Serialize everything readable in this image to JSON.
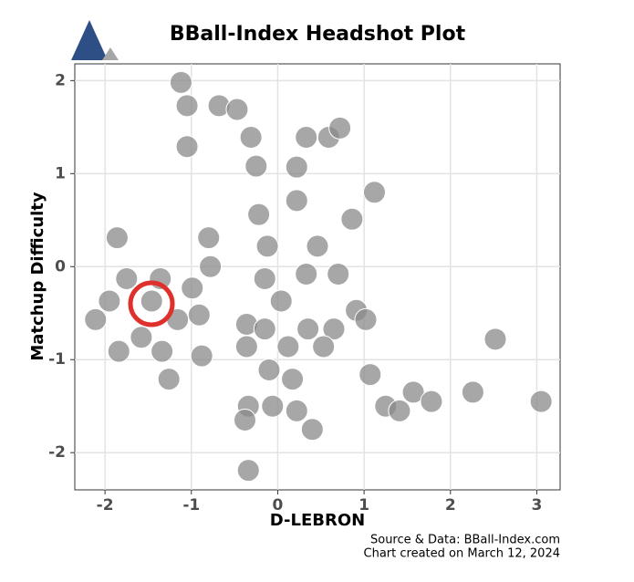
{
  "chart_data": {
    "type": "scatter",
    "title": "BBall-Index Headshot Plot",
    "x_label": "D-LEBRON",
    "y_label": "Matchup Difficulty",
    "source": "Source & Data: BBall-Index.com",
    "caption": "Chart created on March 12, 2024",
    "color": "#8a8a8a",
    "grid": true,
    "xlim": [
      -2.35,
      3.27
    ],
    "ylim": [
      -2.4,
      2.18
    ],
    "xticks": [
      -2,
      -1,
      0,
      1,
      2,
      3
    ],
    "yticks": [
      -2,
      -1,
      0,
      1,
      2
    ],
    "x": [
      -1.12,
      -1.05,
      -0.68,
      -0.47,
      -1.05,
      -0.31,
      0.33,
      0.59,
      0.72,
      -0.25,
      0.22,
      1.12,
      0.22,
      0.86,
      -0.22,
      -1.86,
      -0.8,
      -0.12,
      0.46,
      -0.78,
      -1.75,
      -1.36,
      -0.99,
      -0.15,
      0.33,
      0.7,
      -1.95,
      -2.11,
      -1.46,
      -0.91,
      0.04,
      0.91,
      1.02,
      -0.36,
      -0.15,
      0.35,
      0.65,
      -1.58,
      -1.16,
      -1.84,
      -1.34,
      -0.88,
      -0.36,
      0.12,
      0.53,
      2.52,
      -1.26,
      -0.1,
      0.17,
      1.07,
      -0.34,
      -0.06,
      0.22,
      1.25,
      1.41,
      1.57,
      1.78,
      2.26,
      3.05,
      -0.38,
      0.4,
      -0.34
    ],
    "values": [
      1.98,
      1.73,
      1.73,
      1.69,
      1.29,
      1.39,
      1.39,
      1.39,
      1.49,
      1.08,
      1.07,
      0.8,
      0.71,
      0.51,
      0.56,
      0.31,
      0.31,
      0.22,
      0.22,
      0,
      -0.13,
      -0.13,
      -0.23,
      -0.13,
      -0.08,
      -0.08,
      -0.37,
      -0.57,
      -0.37,
      -0.52,
      -0.37,
      -0.47,
      -0.57,
      -0.62,
      -0.67,
      -0.67,
      -0.67,
      -0.76,
      -0.57,
      -0.91,
      -0.91,
      -0.96,
      -0.86,
      -0.86,
      -0.86,
      -0.78,
      -1.21,
      -1.11,
      -1.21,
      -1.16,
      -1.5,
      -1.5,
      -1.55,
      -1.5,
      -1.55,
      -1.35,
      -1.45,
      -1.35,
      -1.45,
      -1.65,
      -1.75,
      -2.19
    ]
  }
}
